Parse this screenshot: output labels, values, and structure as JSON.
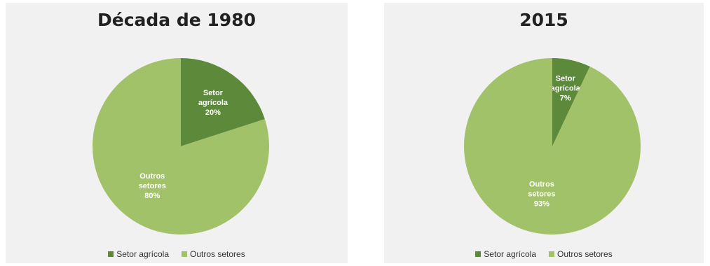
{
  "chart_data": [
    {
      "type": "pie",
      "title": "Década de 1980",
      "slices": [
        {
          "label_lines": [
            "Setor",
            "agrícola",
            "20%"
          ],
          "value": 20,
          "color": "#5c8a3a"
        },
        {
          "label_lines": [
            "Outros",
            "setores",
            "80%"
          ],
          "value": 80,
          "color": "#a2c26a"
        }
      ],
      "legend": [
        "Setor agrícola",
        "Outros setores"
      ],
      "legend_position": "bottom"
    },
    {
      "type": "pie",
      "title": "2015",
      "slices": [
        {
          "label_lines": [
            "Setor",
            "agrícola",
            "7%"
          ],
          "value": 7,
          "color": "#5c8a3a"
        },
        {
          "label_lines": [
            "Outros",
            "setores",
            "93%"
          ],
          "value": 93,
          "color": "#a2c26a"
        }
      ],
      "legend": [
        "Setor agrícola",
        "Outros setores"
      ],
      "legend_position": "bottom"
    }
  ]
}
